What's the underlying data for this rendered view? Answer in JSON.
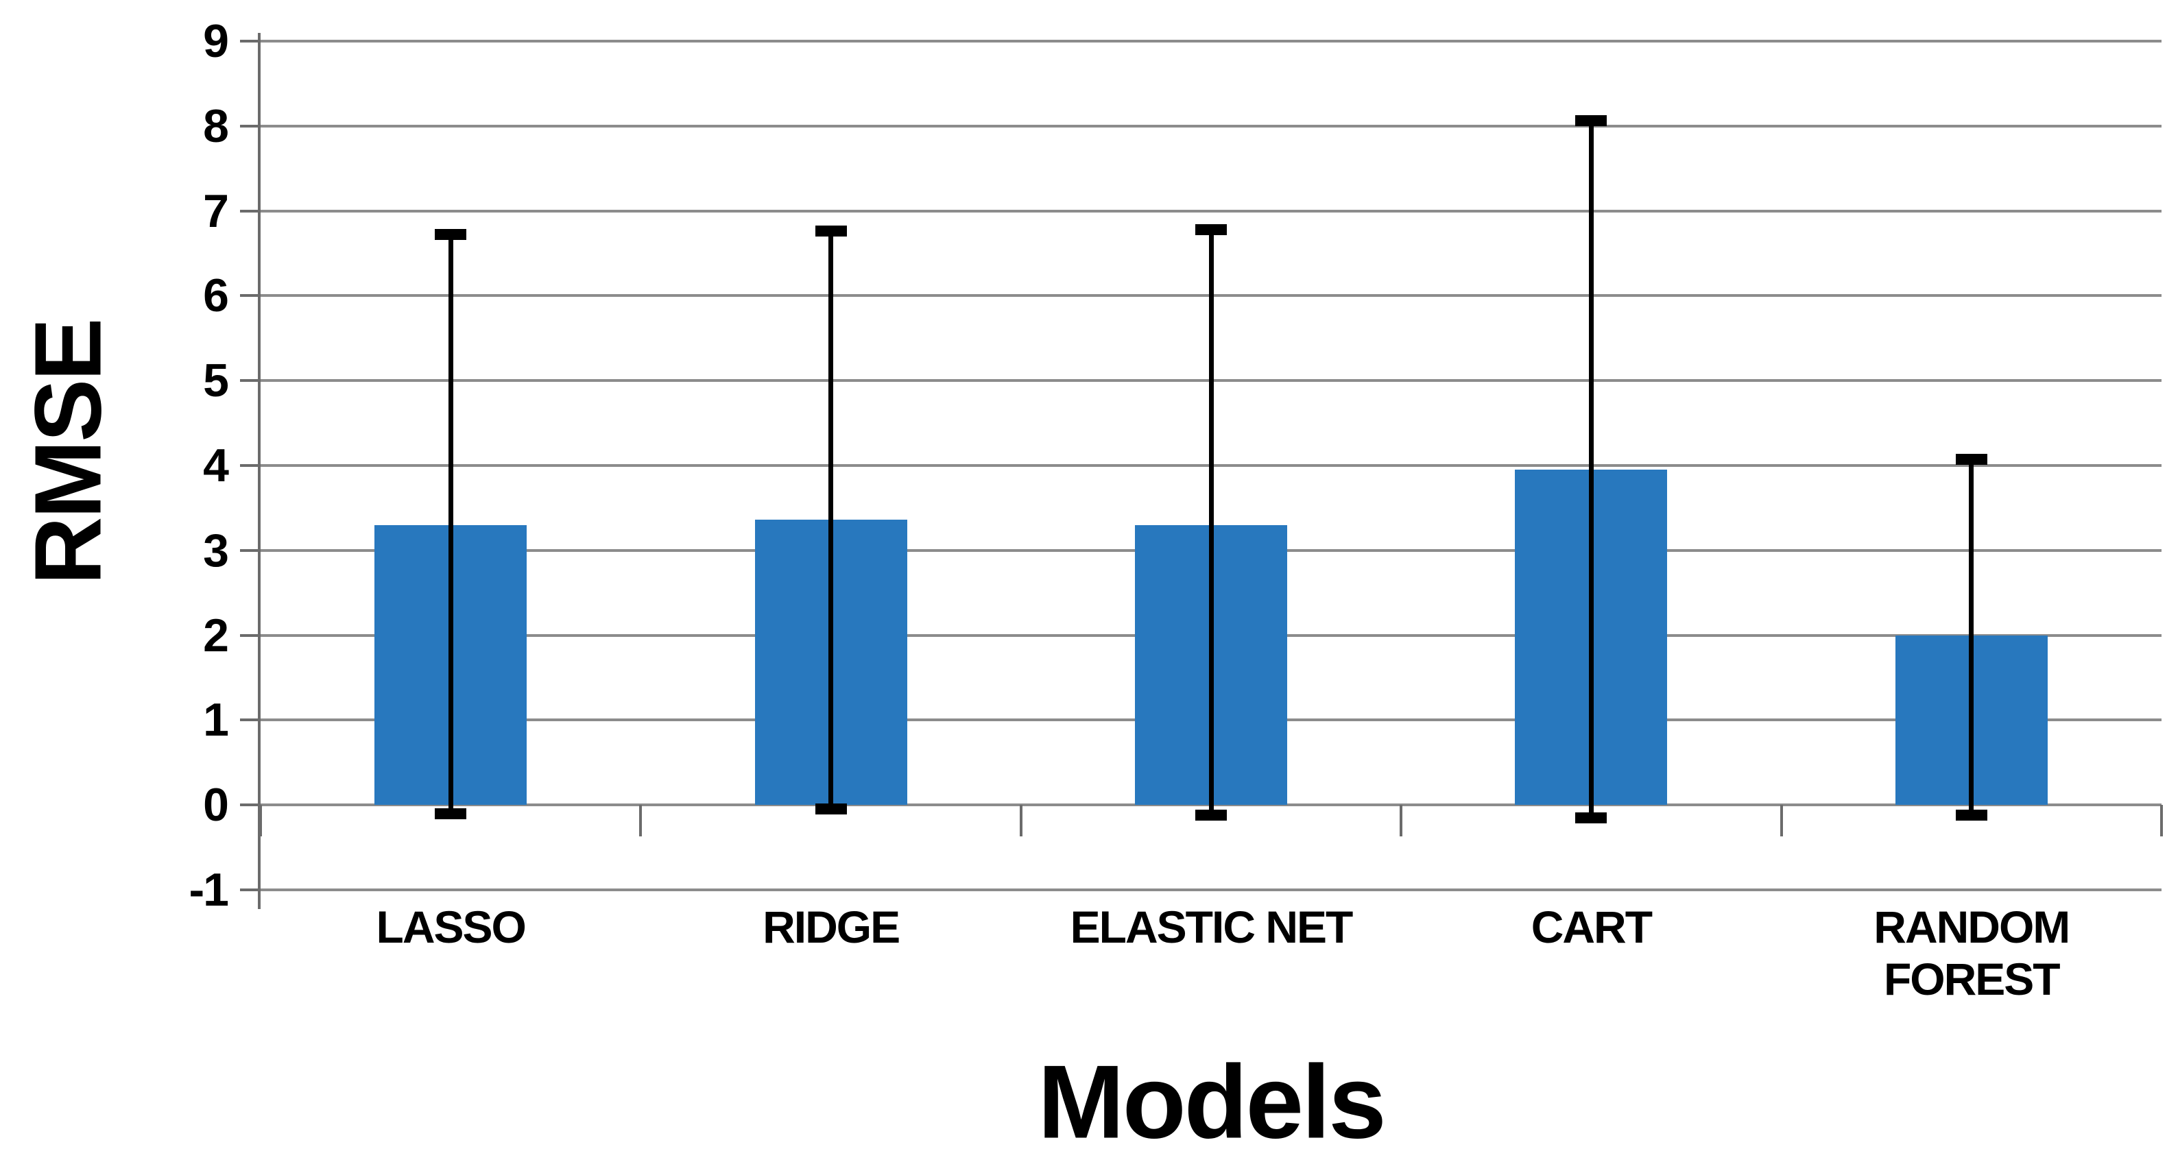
{
  "chart_data": {
    "type": "bar",
    "title": "",
    "xlabel": "Models",
    "ylabel": "RMSE",
    "categories": [
      "LASSO",
      "RIDGE",
      "ELASTIC NET",
      "CART",
      "RANDOM FOREST"
    ],
    "series": [
      {
        "name": "RMSE",
        "values": [
          3.3,
          3.36,
          3.3,
          3.95,
          2.0
        ]
      }
    ],
    "error_bars": {
      "upper": [
        6.72,
        6.76,
        6.78,
        8.06,
        4.07
      ],
      "lower": [
        -0.1,
        -0.05,
        -0.12,
        -0.15,
        -0.12
      ]
    },
    "ylim": [
      -1,
      9
    ],
    "yticks": [
      "9",
      "8",
      "7",
      "6",
      "5",
      "4",
      "3",
      "2",
      "1",
      "0",
      "-1"
    ],
    "ytick_values": [
      9,
      8,
      7,
      6,
      5,
      4,
      3,
      2,
      1,
      0,
      -1
    ],
    "grid": "horizontal",
    "legend_position": "none",
    "colors": {
      "bar": "#2878BE",
      "error_bar": "#000000",
      "gridline": "#8C8C8C",
      "axis": "#6B6B6B",
      "text": "#000000",
      "background": "#FFFFFF"
    }
  }
}
